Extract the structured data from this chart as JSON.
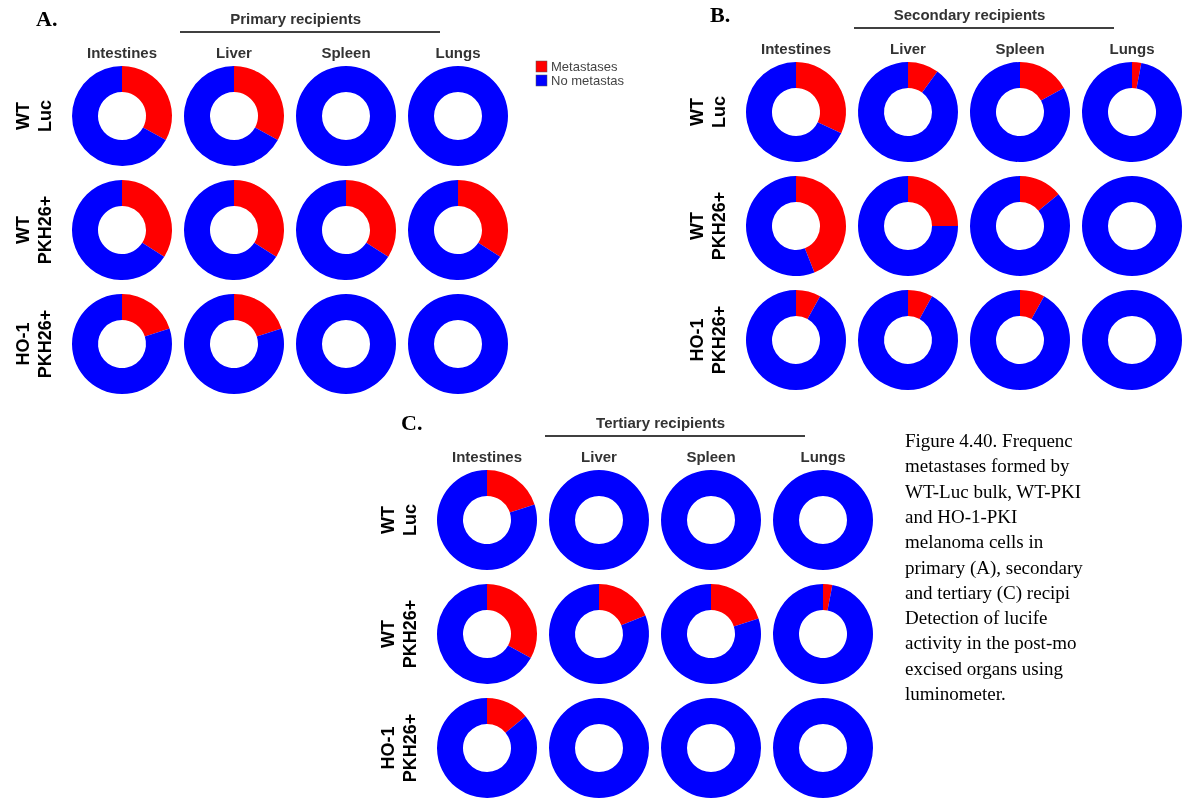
{
  "chart_data": [
    {
      "type": "donut",
      "title": "Intestines",
      "ylabel": "WT Luc",
      "categories": [
        null,
        null
      ],
      "values": [
        33,
        67
      ],
      "colors": [
        "#ff0000",
        "#0000ff"
      ],
      "annotations": [
        "A.",
        "Primary recipients"
      ]
    },
    {
      "type": "donut",
      "title": "Liver",
      "categories": [
        null,
        null
      ],
      "values": [
        33,
        67
      ],
      "colors": [
        "#ff0000",
        "#0000ff"
      ]
    },
    {
      "type": "donut",
      "title": "Spleen",
      "categories": [
        null,
        null
      ],
      "values": [
        0,
        100
      ],
      "colors": [
        "#ff0000",
        "#0000ff"
      ]
    },
    {
      "type": "donut",
      "title": "Lungs",
      "categories": [
        "Metastases",
        "No metastas"
      ],
      "values": [
        0,
        100
      ],
      "colors": [
        "#ff0000",
        "#0000ff"
      ],
      "legend": "right"
    },
    {
      "type": "donut",
      "ylabel": "WT PKH26+",
      "categories": [
        null,
        null
      ],
      "values": [
        34,
        66
      ],
      "colors": [
        "#ff0000",
        "#0000ff"
      ]
    },
    {
      "type": "donut",
      "categories": [
        null,
        null
      ],
      "values": [
        34,
        66
      ],
      "colors": [
        "#ff0000",
        "#0000ff"
      ]
    },
    {
      "type": "donut",
      "categories": [
        null,
        null
      ],
      "values": [
        34,
        66
      ],
      "colors": [
        "#ff0000",
        "#0000ff"
      ]
    },
    {
      "type": "donut",
      "categories": [
        null,
        null
      ],
      "values": [
        34,
        66
      ],
      "colors": [
        "#ff0000",
        "#0000ff"
      ]
    },
    {
      "type": "donut",
      "ylabel": "HO-1 PKH26+",
      "categories": [
        null,
        null
      ],
      "values": [
        20,
        80
      ],
      "colors": [
        "#ff0000",
        "#0000ff"
      ]
    },
    {
      "type": "donut",
      "categories": [
        null,
        null
      ],
      "values": [
        20,
        80
      ],
      "colors": [
        "#ff0000",
        "#0000ff"
      ]
    },
    {
      "type": "donut",
      "categories": [
        null,
        null
      ],
      "values": [
        0,
        100
      ],
      "colors": [
        "#ff0000",
        "#0000ff"
      ]
    },
    {
      "type": "donut",
      "categories": [
        null,
        null
      ],
      "values": [
        0,
        100
      ],
      "colors": [
        "#ff0000",
        "#0000ff"
      ]
    },
    {
      "type": "donut",
      "title": "Intestines",
      "ylabel": "WT Luc",
      "categories": [
        null,
        null
      ],
      "values": [
        32,
        68
      ],
      "colors": [
        "#ff0000",
        "#0000ff"
      ],
      "annotations": [
        "B.",
        "Secondary recipients"
      ]
    },
    {
      "type": "donut",
      "title": "Liver",
      "categories": [
        null,
        null
      ],
      "values": [
        10,
        90
      ],
      "colors": [
        "#ff0000",
        "#0000ff"
      ]
    },
    {
      "type": "donut",
      "title": "Spleen",
      "categories": [
        null,
        null
      ],
      "values": [
        17,
        83
      ],
      "colors": [
        "#ff0000",
        "#0000ff"
      ]
    },
    {
      "type": "donut",
      "title": "Lungs",
      "categories": [
        null,
        null
      ],
      "values": [
        3,
        97
      ],
      "colors": [
        "#ff0000",
        "#0000ff"
      ]
    },
    {
      "type": "donut",
      "ylabel": "WT PKH26+",
      "categories": [
        null,
        null
      ],
      "values": [
        44,
        56
      ],
      "colors": [
        "#ff0000",
        "#0000ff"
      ]
    },
    {
      "type": "donut",
      "categories": [
        null,
        null
      ],
      "values": [
        25,
        75
      ],
      "colors": [
        "#ff0000",
        "#0000ff"
      ]
    },
    {
      "type": "donut",
      "categories": [
        null,
        null
      ],
      "values": [
        14,
        86
      ],
      "colors": [
        "#ff0000",
        "#0000ff"
      ]
    },
    {
      "type": "donut",
      "categories": [
        null,
        null
      ],
      "values": [
        0,
        100
      ],
      "colors": [
        "#ff0000",
        "#0000ff"
      ]
    },
    {
      "type": "donut",
      "ylabel": "HO-1 PKH26+",
      "categories": [
        null,
        null
      ],
      "values": [
        8,
        92
      ],
      "colors": [
        "#ff0000",
        "#0000ff"
      ]
    },
    {
      "type": "donut",
      "categories": [
        null,
        null
      ],
      "values": [
        8,
        92
      ],
      "colors": [
        "#ff0000",
        "#0000ff"
      ]
    },
    {
      "type": "donut",
      "categories": [
        null,
        null
      ],
      "values": [
        8,
        92
      ],
      "colors": [
        "#ff0000",
        "#0000ff"
      ]
    },
    {
      "type": "donut",
      "categories": [
        null,
        null
      ],
      "values": [
        0,
        100
      ],
      "colors": [
        "#ff0000",
        "#0000ff"
      ]
    },
    {
      "type": "donut",
      "title": "Intestines",
      "ylabel": "WT Luc",
      "categories": [
        null,
        null
      ],
      "values": [
        20,
        80
      ],
      "colors": [
        "#ff0000",
        "#0000ff"
      ],
      "annotations": [
        "C.",
        "Tertiary recipients"
      ]
    },
    {
      "type": "donut",
      "title": "Liver",
      "categories": [
        null,
        null
      ],
      "values": [
        0,
        100
      ],
      "colors": [
        "#ff0000",
        "#0000ff"
      ]
    },
    {
      "type": "donut",
      "title": "Spleen",
      "categories": [
        null,
        null
      ],
      "values": [
        0,
        100
      ],
      "colors": [
        "#ff0000",
        "#0000ff"
      ]
    },
    {
      "type": "donut",
      "title": "Lungs",
      "categories": [
        null,
        null
      ],
      "values": [
        0,
        100
      ],
      "colors": [
        "#ff0000",
        "#0000ff"
      ]
    },
    {
      "type": "donut",
      "ylabel": "WT PKH26+",
      "categories": [
        null,
        null
      ],
      "values": [
        33,
        67
      ],
      "colors": [
        "#ff0000",
        "#0000ff"
      ]
    },
    {
      "type": "donut",
      "categories": [
        null,
        null
      ],
      "values": [
        19,
        81
      ],
      "colors": [
        "#ff0000",
        "#0000ff"
      ]
    },
    {
      "type": "donut",
      "categories": [
        null,
        null
      ],
      "values": [
        20,
        80
      ],
      "colors": [
        "#ff0000",
        "#0000ff"
      ]
    },
    {
      "type": "donut",
      "categories": [
        null,
        null
      ],
      "values": [
        3,
        97
      ],
      "colors": [
        "#ff0000",
        "#0000ff"
      ]
    },
    {
      "type": "donut",
      "ylabel": "HO-1 PKH26+",
      "categories": [
        null,
        null
      ],
      "values": [
        14,
        86
      ],
      "colors": [
        "#ff0000",
        "#0000ff"
      ]
    },
    {
      "type": "donut",
      "categories": [
        null,
        null
      ],
      "values": [
        0,
        100
      ],
      "colors": [
        "#ff0000",
        "#0000ff"
      ]
    },
    {
      "type": "donut",
      "categories": [
        null,
        null
      ],
      "values": [
        0,
        100
      ],
      "colors": [
        "#ff0000",
        "#0000ff"
      ]
    },
    {
      "type": "donut",
      "categories": [
        null,
        null
      ],
      "values": [
        0,
        100
      ],
      "colors": [
        "#ff0000",
        "#0000ff"
      ],
      "annotations": [
        "Figure 4.40. Frequenc",
        "metastases formed by",
        "WT-Luc bulk, WT-PKI",
        "and HO-1-PKI",
        "melanoma cells in",
        "primary (A), secondary",
        "and tertiary (C) recipi",
        "Detection of lucife",
        "activity in the post-mo",
        "excised organs using",
        "luminometer."
      ]
    }
  ]
}
